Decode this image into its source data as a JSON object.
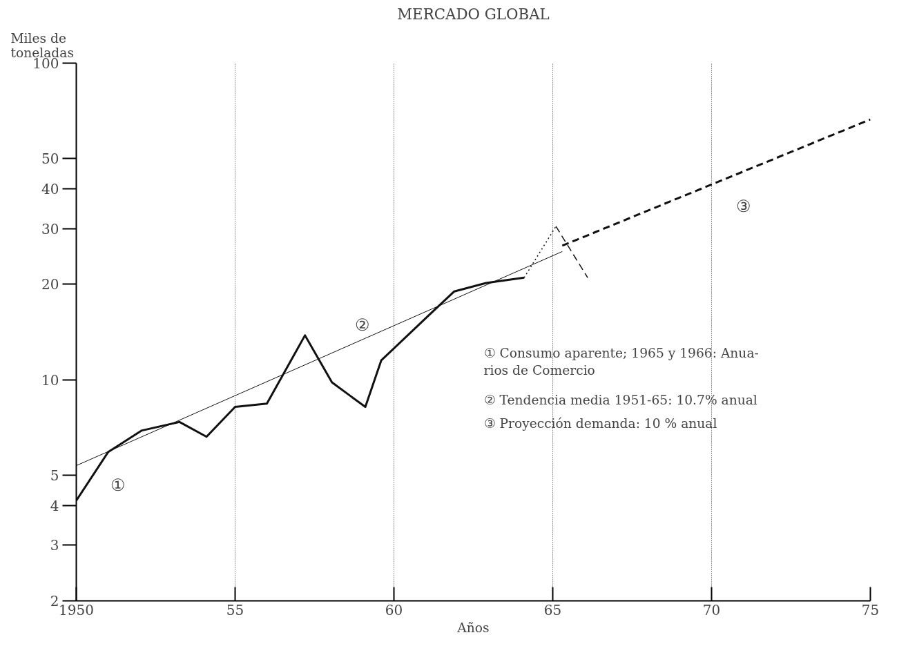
{
  "chart_data": {
    "type": "line",
    "title": "MERCADO GLOBAL",
    "ylabel": "Miles de toneladas",
    "xlabel": "Años",
    "log": true,
    "grid": "x",
    "xlim": [
      1950,
      1975
    ],
    "ylim": [
      2,
      100
    ],
    "xticks": [
      {
        "value": 1950,
        "label": "1950"
      },
      {
        "value": 1955,
        "label": "55"
      },
      {
        "value": 1960,
        "label": "60"
      },
      {
        "value": 1965,
        "label": "65"
      },
      {
        "value": 1970,
        "label": "70"
      },
      {
        "value": 1975,
        "label": "75"
      }
    ],
    "yticks": [
      2,
      3,
      4,
      5,
      10,
      20,
      30,
      40,
      50,
      100
    ],
    "series": [
      {
        "color": "#111111",
        "line_style": "solid",
        "x": [
          1950.0,
          1951.0,
          1952.05,
          1953.25,
          1954.1,
          1955.0,
          1956.0,
          1957.2,
          1958.05,
          1959.1,
          1959.6,
          1961.05,
          1961.9,
          1962.9,
          1964.1
        ],
        "values": [
          4.15,
          5.9,
          6.9,
          7.35,
          6.6,
          8.2,
          8.4,
          13.8,
          9.8,
          8.2,
          11.5,
          15.8,
          19.0,
          20.2,
          21.0
        ]
      },
      {
        "color": "#111111",
        "line_style": "solid",
        "x": [
          1950.0,
          1965.3
        ],
        "values": [
          5.35,
          25.4
        ]
      },
      {
        "color": "#111111",
        "line_style": "dashed",
        "x": [
          1965.3,
          1975.0
        ],
        "values": [
          26.5,
          66.4
        ]
      },
      {
        "color": "#111111",
        "line_style": "dotted",
        "x": [
          1964.1,
          1965.1
        ],
        "values": [
          21.0,
          30.5
        ]
      },
      {
        "color": "#111111",
        "line_style": "dashed",
        "x": [
          1965.1,
          1966.1
        ],
        "values": [
          30.5,
          21.0
        ]
      }
    ],
    "annotations": [
      "①",
      "②",
      "③",
      "① Consumo aparente; 1965 y 1966: Anua-\n    rios de Comercio",
      "② Tendencia media 1951-65: 10.7% anual",
      "③ Proyección demanda: 10 % anual"
    ]
  }
}
